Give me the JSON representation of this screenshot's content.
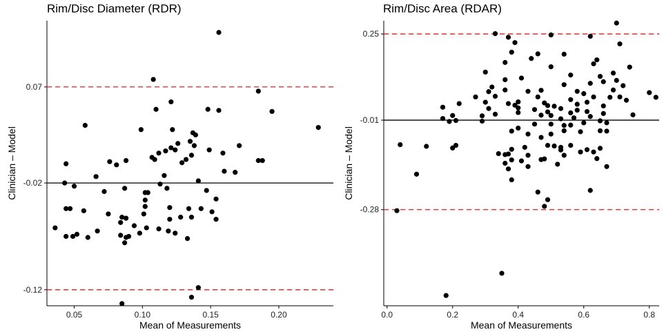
{
  "chart_data": [
    {
      "type": "scatter",
      "title": "Rim/Disc Diameter (RDR)",
      "xlabel": "Mean of Measurements",
      "ylabel": "Clinician – Model",
      "xlim": [
        0.03,
        0.24
      ],
      "ylim": [
        -0.135,
        0.132
      ],
      "xticks": [
        0.05,
        0.1,
        0.15,
        0.2
      ],
      "xtick_labels": [
        "0.05",
        "0.10",
        "0.15",
        "0.20"
      ],
      "yticks": [
        0.07,
        -0.02,
        -0.12
      ],
      "ytick_labels": [
        "0.07",
        "-0.02",
        "-0.12"
      ],
      "mean_line": -0.02,
      "limits_of_agreement": [
        0.07,
        -0.12
      ],
      "grid": false,
      "points": [
        [
          0.156,
          0.121
        ],
        [
          0.108,
          0.077
        ],
        [
          0.185,
          0.066
        ],
        [
          0.195,
          0.047
        ],
        [
          0.229,
          0.032
        ],
        [
          0.11,
          0.049
        ],
        [
          0.121,
          0.056
        ],
        [
          0.148,
          0.049
        ],
        [
          0.156,
          0.048
        ],
        [
          0.058,
          0.034
        ],
        [
          0.099,
          0.03
        ],
        [
          0.122,
          0.03
        ],
        [
          0.137,
          0.027
        ],
        [
          0.139,
          0.025
        ],
        [
          0.135,
          0.019
        ],
        [
          0.126,
          0.017
        ],
        [
          0.124,
          0.011
        ],
        [
          0.121,
          0.013
        ],
        [
          0.117,
          0.01
        ],
        [
          0.112,
          0.008
        ],
        [
          0.107,
          0.004
        ],
        [
          0.109,
          0.002
        ],
        [
          0.138,
          0.015
        ],
        [
          0.129,
          -0.001
        ],
        [
          0.132,
          0.002
        ],
        [
          0.136,
          0.006
        ],
        [
          0.149,
          0.011
        ],
        [
          0.159,
          0.008
        ],
        [
          0.171,
          0.015
        ],
        [
          0.185,
          0.001
        ],
        [
          0.188,
          0.001
        ],
        [
          0.16,
          -0.009
        ],
        [
          0.168,
          -0.01
        ],
        [
          0.076,
          0.0
        ],
        [
          0.081,
          -0.003
        ],
        [
          0.088,
          0.001
        ],
        [
          0.044,
          -0.002
        ],
        [
          0.066,
          -0.014
        ],
        [
          0.072,
          -0.028
        ],
        [
          0.043,
          -0.02
        ],
        [
          0.05,
          -0.023
        ],
        [
          0.087,
          -0.025
        ],
        [
          0.116,
          -0.013
        ],
        [
          0.113,
          -0.021
        ],
        [
          0.118,
          -0.025
        ],
        [
          0.102,
          -0.029
        ],
        [
          0.104,
          -0.029
        ],
        [
          0.102,
          -0.036
        ],
        [
          0.141,
          -0.018
        ],
        [
          0.147,
          -0.027
        ],
        [
          0.154,
          -0.035
        ],
        [
          0.044,
          -0.044
        ],
        [
          0.047,
          -0.044
        ],
        [
          0.057,
          -0.046
        ],
        [
          0.102,
          -0.042
        ],
        [
          0.12,
          -0.043
        ],
        [
          0.134,
          -0.044
        ],
        [
          0.143,
          -0.044
        ],
        [
          0.151,
          -0.047
        ],
        [
          0.036,
          -0.062
        ],
        [
          0.075,
          -0.049
        ],
        [
          0.085,
          -0.052
        ],
        [
          0.088,
          -0.053
        ],
        [
          0.101,
          -0.049
        ],
        [
          0.12,
          -0.054
        ],
        [
          0.128,
          -0.052
        ],
        [
          0.136,
          -0.052
        ],
        [
          0.154,
          -0.054
        ],
        [
          0.084,
          -0.057
        ],
        [
          0.103,
          -0.062
        ],
        [
          0.112,
          -0.063
        ],
        [
          0.119,
          -0.065
        ],
        [
          0.124,
          -0.067
        ],
        [
          0.094,
          -0.06
        ],
        [
          0.044,
          -0.07
        ],
        [
          0.049,
          -0.07
        ],
        [
          0.052,
          -0.068
        ],
        [
          0.06,
          -0.071
        ],
        [
          0.067,
          -0.065
        ],
        [
          0.088,
          -0.071
        ],
        [
          0.084,
          -0.069
        ],
        [
          0.087,
          -0.076
        ],
        [
          0.09,
          -0.07
        ],
        [
          0.098,
          -0.067
        ],
        [
          0.133,
          -0.072
        ],
        [
          0.141,
          -0.118
        ],
        [
          0.136,
          -0.127
        ],
        [
          0.085,
          -0.133
        ]
      ]
    },
    {
      "type": "scatter",
      "title": "Rim/Disc Area (RDAR)",
      "xlabel": "Mean of Measurements",
      "ylabel": "Clinician – Model",
      "xlim": [
        -0.01,
        0.83
      ],
      "ylim": [
        -0.57,
        0.29
      ],
      "xticks": [
        0.0,
        0.2,
        0.4,
        0.6,
        0.8
      ],
      "xtick_labels": [
        "0.0",
        "0.2",
        "0.4",
        "0.6",
        "0.8"
      ],
      "yticks": [
        0.25,
        -0.01,
        -0.28
      ],
      "ytick_labels": [
        "0.25",
        "-0.01",
        "-0.28"
      ],
      "mean_line": -0.01,
      "limits_of_agreement": [
        0.25,
        -0.28
      ],
      "grid": false,
      "points": [
        [
          0.7,
          0.283
        ],
        [
          0.33,
          0.251
        ],
        [
          0.5,
          0.247
        ],
        [
          0.37,
          0.24
        ],
        [
          0.62,
          0.243
        ],
        [
          0.39,
          0.224
        ],
        [
          0.71,
          0.22
        ],
        [
          0.38,
          0.195
        ],
        [
          0.46,
          0.19
        ],
        [
          0.54,
          0.189
        ],
        [
          0.44,
          0.176
        ],
        [
          0.64,
          0.172
        ],
        [
          0.36,
          0.164
        ],
        [
          0.5,
          0.151
        ],
        [
          0.63,
          0.16
        ],
        [
          0.74,
          0.15
        ],
        [
          0.3,
          0.135
        ],
        [
          0.65,
          0.122
        ],
        [
          0.56,
          0.126
        ],
        [
          0.69,
          0.132
        ],
        [
          0.36,
          0.112
        ],
        [
          0.41,
          0.117
        ],
        [
          0.32,
          0.09
        ],
        [
          0.54,
          0.097
        ],
        [
          0.62,
          0.101
        ],
        [
          0.7,
          0.11
        ],
        [
          0.66,
          0.106
        ],
        [
          0.31,
          0.076
        ],
        [
          0.36,
          0.081
        ],
        [
          0.43,
          0.077
        ],
        [
          0.47,
          0.08
        ],
        [
          0.58,
          0.077
        ],
        [
          0.6,
          0.07
        ],
        [
          0.69,
          0.081
        ],
        [
          0.72,
          0.094
        ],
        [
          0.8,
          0.073
        ],
        [
          0.82,
          0.059
        ],
        [
          0.27,
          0.06
        ],
        [
          0.33,
          0.062
        ],
        [
          0.3,
          0.044
        ],
        [
          0.4,
          0.045
        ],
        [
          0.46,
          0.06
        ],
        [
          0.56,
          0.052
        ],
        [
          0.63,
          0.06
        ],
        [
          0.68,
          0.059
        ],
        [
          0.71,
          0.06
        ],
        [
          0.73,
          0.05
        ],
        [
          0.22,
          0.04
        ],
        [
          0.37,
          0.04
        ],
        [
          0.39,
          0.035
        ],
        [
          0.48,
          0.042
        ],
        [
          0.49,
          0.034
        ],
        [
          0.51,
          0.032
        ],
        [
          0.53,
          0.025
        ],
        [
          0.58,
          0.038
        ],
        [
          0.61,
          0.044
        ],
        [
          0.66,
          0.033
        ],
        [
          0.17,
          0.029
        ],
        [
          0.31,
          0.025
        ],
        [
          0.33,
          0.008
        ],
        [
          0.4,
          0.027
        ],
        [
          0.45,
          0.022
        ],
        [
          0.49,
          0.015
        ],
        [
          0.56,
          0.012
        ],
        [
          0.58,
          0.02
        ],
        [
          0.61,
          0.016
        ],
        [
          0.66,
          0.01
        ],
        [
          0.75,
          0.006
        ],
        [
          0.2,
          0.004
        ],
        [
          0.29,
          0.003
        ],
        [
          0.4,
          0.013
        ],
        [
          0.47,
          0.005
        ],
        [
          0.5,
          0.004
        ],
        [
          0.53,
          -0.006
        ],
        [
          0.57,
          -0.003
        ],
        [
          0.62,
          0.001
        ],
        [
          0.17,
          -0.005
        ],
        [
          0.19,
          -0.014
        ],
        [
          0.21,
          -0.011
        ],
        [
          0.29,
          -0.013
        ],
        [
          0.45,
          -0.022
        ],
        [
          0.5,
          -0.022
        ],
        [
          0.54,
          -0.026
        ],
        [
          0.56,
          -0.025
        ],
        [
          0.6,
          -0.018
        ],
        [
          0.65,
          -0.012
        ],
        [
          0.67,
          -0.018
        ],
        [
          0.4,
          -0.034
        ],
        [
          0.38,
          -0.043
        ],
        [
          0.43,
          -0.052
        ],
        [
          0.47,
          -0.062
        ],
        [
          0.5,
          -0.052
        ],
        [
          0.54,
          -0.042
        ],
        [
          0.59,
          -0.045
        ],
        [
          0.65,
          -0.042
        ],
        [
          0.67,
          -0.043
        ],
        [
          0.04,
          -0.084
        ],
        [
          0.12,
          -0.089
        ],
        [
          0.21,
          -0.086
        ],
        [
          0.2,
          -0.094
        ],
        [
          0.38,
          -0.098
        ],
        [
          0.42,
          -0.092
        ],
        [
          0.49,
          -0.086
        ],
        [
          0.51,
          -0.088
        ],
        [
          0.53,
          -0.092
        ],
        [
          0.53,
          -0.1
        ],
        [
          0.56,
          -0.086
        ],
        [
          0.61,
          -0.099
        ],
        [
          0.63,
          -0.106
        ],
        [
          0.65,
          -0.095
        ],
        [
          0.34,
          -0.111
        ],
        [
          0.36,
          -0.114
        ],
        [
          0.37,
          -0.112
        ],
        [
          0.43,
          -0.116
        ],
        [
          0.54,
          -0.116
        ],
        [
          0.59,
          -0.106
        ],
        [
          0.47,
          -0.129
        ],
        [
          0.48,
          -0.127
        ],
        [
          0.38,
          -0.13
        ],
        [
          0.36,
          -0.14
        ],
        [
          0.41,
          -0.133
        ],
        [
          0.52,
          -0.143
        ],
        [
          0.67,
          -0.15
        ],
        [
          0.64,
          -0.126
        ],
        [
          0.37,
          -0.157
        ],
        [
          0.43,
          -0.15
        ],
        [
          0.09,
          -0.173
        ],
        [
          0.38,
          -0.19
        ],
        [
          0.46,
          -0.227
        ],
        [
          0.62,
          -0.222
        ],
        [
          0.49,
          -0.25
        ],
        [
          0.48,
          -0.27
        ],
        [
          0.03,
          -0.283
        ],
        [
          0.35,
          -0.472
        ],
        [
          0.18,
          -0.539
        ]
      ]
    }
  ]
}
